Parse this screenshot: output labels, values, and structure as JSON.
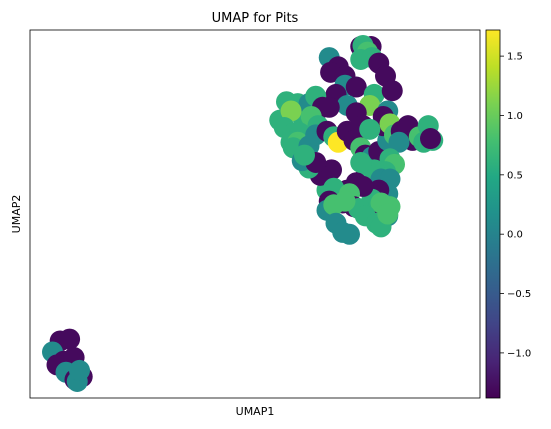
{
  "chart_data": {
    "type": "scatter",
    "title": "UMAP for Pits",
    "xlabel": "UMAP1",
    "ylabel": "UMAP2",
    "xticks": false,
    "yticks": false,
    "xlim": [
      0,
      100
    ],
    "ylim": [
      0,
      100
    ],
    "colormap": "viridis",
    "colorbar": {
      "vmin": -1.38,
      "vmax": 1.72,
      "ticks": [
        -1.0,
        -0.5,
        0.0,
        0.5,
        1.0,
        1.5
      ],
      "tick_labels": [
        "−1.0",
        "−0.5",
        "0.0",
        "0.5",
        "1.0",
        "1.5"
      ]
    },
    "points": [
      {
        "x": 6.7,
        "y": 15.5,
        "v": -1.3
      },
      {
        "x": 8.8,
        "y": 16.0,
        "v": -1.3
      },
      {
        "x": 5.0,
        "y": 12.5,
        "v": 0.1
      },
      {
        "x": 7.5,
        "y": 10.0,
        "v": -1.3
      },
      {
        "x": 9.8,
        "y": 11.0,
        "v": -1.3
      },
      {
        "x": 6.0,
        "y": 9.0,
        "v": -1.3
      },
      {
        "x": 8.0,
        "y": 7.0,
        "v": 0.1
      },
      {
        "x": 11.6,
        "y": 5.8,
        "v": -1.3
      },
      {
        "x": 10.0,
        "y": 5.0,
        "v": -1.3
      },
      {
        "x": 10.5,
        "y": 4.5,
        "v": 0.1
      },
      {
        "x": 11.0,
        "y": 7.5,
        "v": 0.1
      },
      {
        "x": 73.5,
        "y": 95.5,
        "v": -1.3
      },
      {
        "x": 75.8,
        "y": 95.5,
        "v": -1.3
      },
      {
        "x": 74.0,
        "y": 95.8,
        "v": 0.6
      },
      {
        "x": 75.0,
        "y": 94.0,
        "v": 0.8
      },
      {
        "x": 73.5,
        "y": 92.0,
        "v": 0.6
      },
      {
        "x": 76.0,
        "y": 92.5,
        "v": 0.6
      },
      {
        "x": 77.5,
        "y": 91.0,
        "v": -1.3
      },
      {
        "x": 66.5,
        "y": 92.5,
        "v": 0.1
      },
      {
        "x": 68.5,
        "y": 90.0,
        "v": -1.3
      },
      {
        "x": 66.8,
        "y": 88.5,
        "v": -1.3
      },
      {
        "x": 70.0,
        "y": 87.5,
        "v": -1.3
      },
      {
        "x": 70.0,
        "y": 85.0,
        "v": 0.1
      },
      {
        "x": 72.5,
        "y": 84.5,
        "v": -1.3
      },
      {
        "x": 76.5,
        "y": 82.5,
        "v": 0.6
      },
      {
        "x": 79.0,
        "y": 87.5,
        "v": -1.3
      },
      {
        "x": 80.5,
        "y": 83.5,
        "v": -1.3
      },
      {
        "x": 68.0,
        "y": 82.5,
        "v": -1.3
      },
      {
        "x": 70.5,
        "y": 79.5,
        "v": 0.1
      },
      {
        "x": 75.5,
        "y": 79.5,
        "v": 1.1
      },
      {
        "x": 72.5,
        "y": 77.5,
        "v": -1.3
      },
      {
        "x": 74.0,
        "y": 74.0,
        "v": -1.3
      },
      {
        "x": 79.5,
        "y": 78.0,
        "v": 0.1
      },
      {
        "x": 78.5,
        "y": 76.5,
        "v": -1.3
      },
      {
        "x": 55.5,
        "y": 75.5,
        "v": 0.6
      },
      {
        "x": 57.0,
        "y": 80.5,
        "v": 0.6
      },
      {
        "x": 58.0,
        "y": 78.0,
        "v": 0.1
      },
      {
        "x": 59.5,
        "y": 80.0,
        "v": 0.6
      },
      {
        "x": 60.5,
        "y": 76.5,
        "v": 0.6
      },
      {
        "x": 62.0,
        "y": 80.0,
        "v": 0.1
      },
      {
        "x": 63.5,
        "y": 82.0,
        "v": 0.6
      },
      {
        "x": 65.0,
        "y": 79.0,
        "v": -1.3
      },
      {
        "x": 66.5,
        "y": 79.0,
        "v": -1.3
      },
      {
        "x": 62.5,
        "y": 76.5,
        "v": 0.8
      },
      {
        "x": 64.0,
        "y": 74.0,
        "v": 0.6
      },
      {
        "x": 58.0,
        "y": 78.0,
        "v": 1.1
      },
      {
        "x": 56.5,
        "y": 73.5,
        "v": 0.6
      },
      {
        "x": 58.5,
        "y": 72.0,
        "v": 0.6
      },
      {
        "x": 60.0,
        "y": 72.0,
        "v": 0.6
      },
      {
        "x": 58.0,
        "y": 69.5,
        "v": 0.6
      },
      {
        "x": 59.5,
        "y": 69.5,
        "v": 0.8
      },
      {
        "x": 58.5,
        "y": 68.0,
        "v": 0.6
      },
      {
        "x": 62.0,
        "y": 68.5,
        "v": 0.1
      },
      {
        "x": 63.5,
        "y": 71.5,
        "v": 0.1
      },
      {
        "x": 66.0,
        "y": 72.5,
        "v": -1.3
      },
      {
        "x": 67.5,
        "y": 71.0,
        "v": 0.6
      },
      {
        "x": 68.5,
        "y": 69.5,
        "v": 1.72
      },
      {
        "x": 70.5,
        "y": 72.5,
        "v": -1.3
      },
      {
        "x": 72.0,
        "y": 70.0,
        "v": -1.3
      },
      {
        "x": 73.5,
        "y": 68.0,
        "v": 0.8
      },
      {
        "x": 74.5,
        "y": 66.0,
        "v": -1.3
      },
      {
        "x": 76.0,
        "y": 65.5,
        "v": 0.1
      },
      {
        "x": 77.5,
        "y": 67.0,
        "v": -1.3
      },
      {
        "x": 79.5,
        "y": 70.0,
        "v": 0.1
      },
      {
        "x": 78.5,
        "y": 74.0,
        "v": -1.3
      },
      {
        "x": 80.0,
        "y": 74.5,
        "v": 1.1
      },
      {
        "x": 81.0,
        "y": 71.5,
        "v": 0.8
      },
      {
        "x": 82.5,
        "y": 72.5,
        "v": -1.3
      },
      {
        "x": 84.0,
        "y": 74.0,
        "v": -1.3
      },
      {
        "x": 85.0,
        "y": 70.0,
        "v": -1.3
      },
      {
        "x": 86.5,
        "y": 71.0,
        "v": 0.8
      },
      {
        "x": 87.5,
        "y": 69.5,
        "v": 0.6
      },
      {
        "x": 88.5,
        "y": 74.0,
        "v": 0.6
      },
      {
        "x": 89.5,
        "y": 70.0,
        "v": 0.6
      },
      {
        "x": 89.0,
        "y": 70.5,
        "v": -1.3
      },
      {
        "x": 82.0,
        "y": 69.5,
        "v": 0.1
      },
      {
        "x": 80.0,
        "y": 65.0,
        "v": 0.6
      },
      {
        "x": 81.0,
        "y": 63.5,
        "v": 0.8
      },
      {
        "x": 79.0,
        "y": 61.5,
        "v": 0.6
      },
      {
        "x": 76.5,
        "y": 62.0,
        "v": 0.6
      },
      {
        "x": 74.5,
        "y": 60.0,
        "v": -1.3
      },
      {
        "x": 75.5,
        "y": 60.5,
        "v": 0.6
      },
      {
        "x": 78.0,
        "y": 59.5,
        "v": 0.1
      },
      {
        "x": 80.0,
        "y": 59.5,
        "v": 0.1
      },
      {
        "x": 79.5,
        "y": 55.5,
        "v": 0.1
      },
      {
        "x": 77.5,
        "y": 56.5,
        "v": -1.3
      },
      {
        "x": 76.0,
        "y": 54.0,
        "v": 0.6
      },
      {
        "x": 77.5,
        "y": 52.5,
        "v": 0.6
      },
      {
        "x": 78.5,
        "y": 51.0,
        "v": -1.3
      },
      {
        "x": 79.5,
        "y": 49.5,
        "v": 0.1
      },
      {
        "x": 78.0,
        "y": 53.0,
        "v": 0.8
      },
      {
        "x": 80.0,
        "y": 52.0,
        "v": 0.8
      },
      {
        "x": 70.5,
        "y": 56.5,
        "v": -1.3
      },
      {
        "x": 72.5,
        "y": 58.5,
        "v": -1.3
      },
      {
        "x": 74.0,
        "y": 57.5,
        "v": -1.3
      },
      {
        "x": 66.0,
        "y": 56.5,
        "v": 0.6
      },
      {
        "x": 67.0,
        "y": 62.0,
        "v": -1.3
      },
      {
        "x": 64.5,
        "y": 60.5,
        "v": -1.3
      },
      {
        "x": 67.5,
        "y": 57.0,
        "v": 0.6
      },
      {
        "x": 71.0,
        "y": 55.5,
        "v": 0.8
      },
      {
        "x": 66.5,
        "y": 53.5,
        "v": -1.3
      },
      {
        "x": 69.5,
        "y": 53.0,
        "v": -1.3
      },
      {
        "x": 72.0,
        "y": 52.0,
        "v": -1.3
      },
      {
        "x": 73.0,
        "y": 51.5,
        "v": 0.6
      },
      {
        "x": 66.0,
        "y": 51.0,
        "v": 0.1
      },
      {
        "x": 67.5,
        "y": 52.5,
        "v": 0.8
      },
      {
        "x": 70.0,
        "y": 53.5,
        "v": 0.8
      },
      {
        "x": 68.0,
        "y": 47.5,
        "v": 0.1
      },
      {
        "x": 69.5,
        "y": 45.0,
        "v": 0.1
      },
      {
        "x": 71.0,
        "y": 44.5,
        "v": 0.1
      },
      {
        "x": 74.5,
        "y": 49.5,
        "v": 0.6
      },
      {
        "x": 77.0,
        "y": 47.5,
        "v": 0.6
      },
      {
        "x": 78.0,
        "y": 46.5,
        "v": 0.6
      },
      {
        "x": 79.5,
        "y": 50.0,
        "v": 0.8
      },
      {
        "x": 62.0,
        "y": 62.5,
        "v": 0.6
      },
      {
        "x": 60.5,
        "y": 64.5,
        "v": 0.1
      },
      {
        "x": 63.5,
        "y": 64.0,
        "v": -1.3
      },
      {
        "x": 61.0,
        "y": 66.0,
        "v": 0.6
      },
      {
        "x": 75.5,
        "y": 73.0,
        "v": 0.6
      },
      {
        "x": 73.5,
        "y": 64.0,
        "v": 0.6
      }
    ]
  }
}
